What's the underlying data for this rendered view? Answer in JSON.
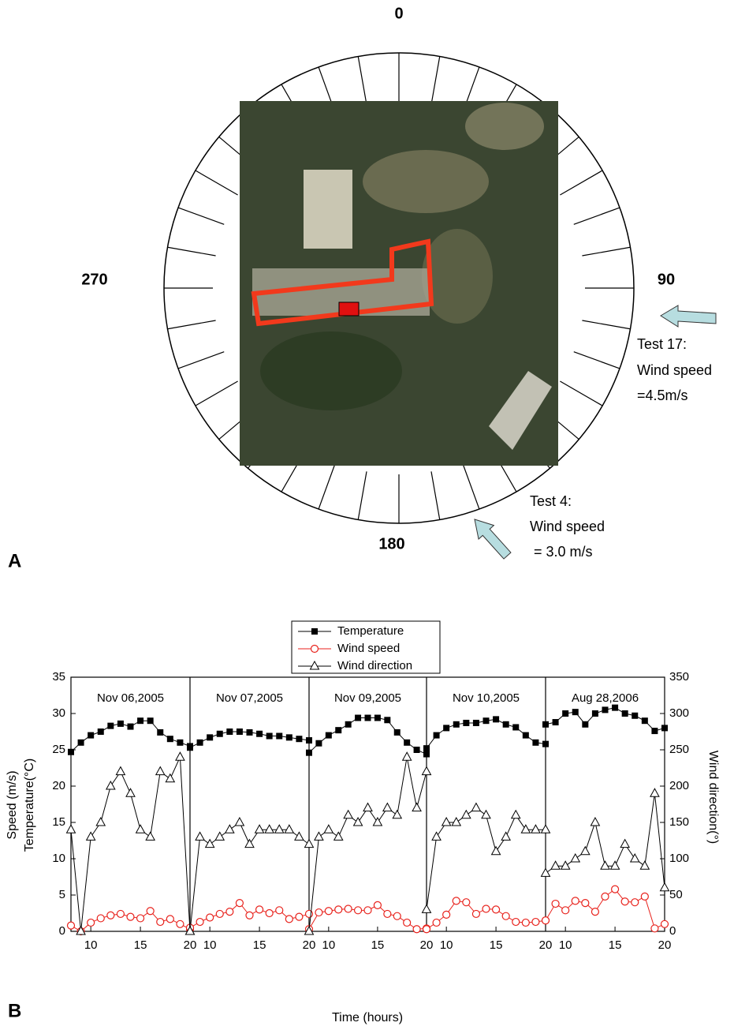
{
  "figure_a": {
    "label": "A",
    "compass": [
      "0",
      "90",
      "180",
      "270"
    ],
    "annotations": [
      {
        "lines": [
          "Test 17:",
          "Wind speed",
          "=4.5m/s"
        ]
      },
      {
        "lines": [
          "Test 4:",
          "Wind speed",
          " = 3.0 m/s"
        ]
      }
    ]
  },
  "figure_b_label": "B",
  "chart_data": {
    "type": "line",
    "panels": [
      "Nov 06,2005",
      "Nov 07,2005",
      "Nov 09,2005",
      "Nov 10,2005",
      "Aug 28,2006"
    ],
    "x": [
      8,
      9,
      10,
      11,
      12,
      13,
      14,
      15,
      16,
      17,
      18,
      19,
      20
    ],
    "xlim": [
      8,
      20
    ],
    "xticks": [
      10,
      15,
      20
    ],
    "xlabel": "Time (hours)",
    "ylabel": [
      "Speed (m/s)",
      "Temperature(°C)"
    ],
    "ylim": [
      0,
      35
    ],
    "yticks": [
      0,
      5,
      10,
      15,
      20,
      25,
      30,
      35
    ],
    "y2label": "Wind direction(°)",
    "y2lim": [
      0,
      350
    ],
    "y2ticks": [
      0,
      50,
      100,
      150,
      200,
      250,
      300,
      350
    ],
    "series": [
      {
        "name": "Temperature",
        "color": "#000000",
        "marker": "square",
        "values": [
          [
            24.7,
            26,
            27,
            27.5,
            28.3,
            28.6,
            28.2,
            29,
            29,
            27.4,
            26.5,
            26,
            25.5
          ],
          [
            25.3,
            26,
            26.7,
            27.2,
            27.5,
            27.5,
            27.4,
            27.2,
            26.9,
            26.9,
            26.7,
            26.5,
            26.3
          ],
          [
            24.6,
            25.9,
            27,
            27.7,
            28.5,
            29.4,
            29.4,
            29.4,
            29.1,
            27.4,
            26,
            25,
            24.4
          ],
          [
            25.2,
            27,
            28,
            28.5,
            28.7,
            28.7,
            29,
            29.2,
            28.5,
            28.1,
            27,
            26,
            25.8
          ],
          [
            28.5,
            28.8,
            30,
            30.2,
            28.5,
            30,
            30.5,
            30.8,
            30,
            29.7,
            29,
            27.6,
            28
          ]
        ]
      },
      {
        "name": "Wind speed",
        "color": "#e8221c",
        "marker": "circle",
        "values": [
          [
            0.8,
            0,
            1.2,
            1.8,
            2.2,
            2.4,
            2,
            1.8,
            2.8,
            1.3,
            1.7,
            1,
            0.3
          ],
          [
            0.5,
            1.3,
            1.9,
            2.4,
            2.7,
            3.9,
            2.2,
            3,
            2.5,
            2.9,
            1.7,
            2,
            2.4
          ],
          [
            0.3,
            2.6,
            2.8,
            3,
            3.1,
            2.9,
            2.9,
            3.6,
            2.4,
            2.1,
            1.2,
            0.3,
            0.4
          ],
          [
            0.3,
            1.2,
            2.3,
            4.2,
            4,
            2.4,
            3.1,
            3,
            2.1,
            1.3,
            1.2,
            1.3,
            1.5
          ],
          [
            1.5,
            3.8,
            2.9,
            4.2,
            3.9,
            2.7,
            4.8,
            5.8,
            4.1,
            4,
            4.8,
            0.4,
            1
          ]
        ]
      },
      {
        "name": "Wind direction",
        "color": "#000000",
        "marker": "triangle",
        "axis": "y2",
        "values": [
          [
            140,
            0,
            130,
            150,
            200,
            220,
            190,
            140,
            130,
            220,
            210,
            240,
            0
          ],
          [
            0,
            130,
            120,
            130,
            140,
            150,
            120,
            140,
            140,
            140,
            140,
            130,
            120
          ],
          [
            0,
            130,
            140,
            130,
            160,
            150,
            170,
            150,
            170,
            160,
            240,
            170,
            220
          ],
          [
            30,
            130,
            150,
            150,
            160,
            170,
            160,
            110,
            130,
            160,
            140,
            140,
            140
          ],
          [
            80,
            90,
            90,
            100,
            110,
            150,
            90,
            90,
            120,
            100,
            90,
            190,
            60
          ]
        ]
      }
    ]
  }
}
